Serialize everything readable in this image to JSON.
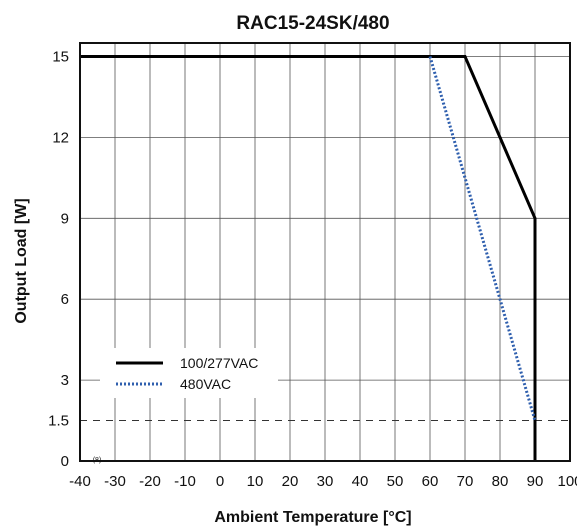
{
  "chart_data": {
    "type": "line",
    "title": "RAC15-24SK/480",
    "xlabel": "Ambient Temperature [°C]",
    "ylabel": "Output Load [W]",
    "xlim": [
      -40,
      100
    ],
    "ylim": [
      0,
      15.5
    ],
    "x_ticks": [
      -40,
      -30,
      -20,
      -10,
      0,
      10,
      20,
      30,
      40,
      50,
      60,
      70,
      80,
      90,
      100
    ],
    "y_ticks": [
      0,
      1.5,
      3,
      6,
      9,
      12,
      15
    ],
    "x_tick_labels": [
      "-40",
      "-30",
      "-20",
      "-10",
      "0",
      "10",
      "20",
      "30",
      "40",
      "50",
      "60",
      "70",
      "80",
      "90",
      "100"
    ],
    "y_tick_labels": [
      "0",
      "1.5",
      "3",
      "6",
      "9",
      "12",
      "15"
    ],
    "footnote_marker": "(8)",
    "grid": true,
    "legend_position": "bottom-left",
    "reference_line": {
      "y": 1.5,
      "style": "dashed"
    },
    "series": [
      {
        "name": "100/277VAC",
        "style": "solid",
        "color": "#000000",
        "x": [
          -40,
          70,
          90,
          90
        ],
        "y": [
          15,
          15,
          9,
          0
        ]
      },
      {
        "name": "480VAC",
        "style": "dotted",
        "color": "#2f5fae",
        "x": [
          60,
          90
        ],
        "y": [
          15,
          1.5
        ]
      }
    ]
  }
}
